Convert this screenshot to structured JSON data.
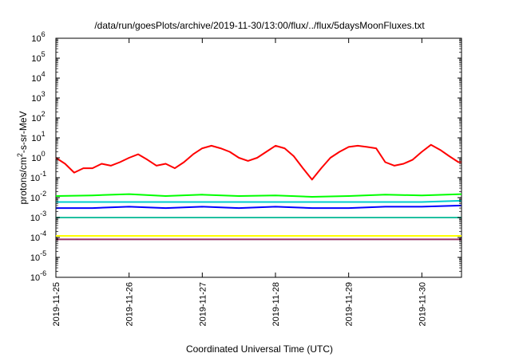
{
  "chart_data": {
    "type": "line",
    "title": "/data/run/goesPlots/archive/2019-11-30/13:00/flux/../flux/5daysMoonFluxes.txt",
    "xlabel": "Coordinated Universal Time (UTC)",
    "ylabel": "protons/cm2-s-sr-MeV",
    "ylabel_base": "protons/cm",
    "ylabel_sup": "2",
    "ylabel_rest": "-s-sr-MeV",
    "yscale": "log",
    "ylim": [
      1e-06,
      1000000.0
    ],
    "y_ticks": [
      {
        "base": "10",
        "exp": "-6",
        "value": 1e-06
      },
      {
        "base": "10",
        "exp": "-5",
        "value": 1e-05
      },
      {
        "base": "10",
        "exp": "-4",
        "value": 0.0001
      },
      {
        "base": "10",
        "exp": "-3",
        "value": 0.001
      },
      {
        "base": "10",
        "exp": "-2",
        "value": 0.01
      },
      {
        "base": "10",
        "exp": "-1",
        "value": 0.1
      },
      {
        "base": "10",
        "exp": "0",
        "value": 1
      },
      {
        "base": "10",
        "exp": "1",
        "value": 10
      },
      {
        "base": "10",
        "exp": "2",
        "value": 100
      },
      {
        "base": "10",
        "exp": "3",
        "value": 1000
      },
      {
        "base": "10",
        "exp": "4",
        "value": 10000
      },
      {
        "base": "10",
        "exp": "5",
        "value": 100000
      },
      {
        "base": "10",
        "exp": "6",
        "value": 1000000
      }
    ],
    "xlim": [
      "2019-11-25T00:00",
      "2019-11-30T13:00"
    ],
    "x_ticks": [
      "2019-11-25",
      "2019-11-26",
      "2019-11-27",
      "2019-11-28",
      "2019-11-29",
      "2019-11-30"
    ],
    "grid": false,
    "series": [
      {
        "color": "#ff0000",
        "x": [
          "2019-11-25T00:00",
          "2019-11-25T03:00",
          "2019-11-25T06:00",
          "2019-11-25T09:00",
          "2019-11-25T12:00",
          "2019-11-25T15:00",
          "2019-11-25T18:00",
          "2019-11-25T21:00",
          "2019-11-26T00:00",
          "2019-11-26T03:00",
          "2019-11-26T06:00",
          "2019-11-26T09:00",
          "2019-11-26T12:00",
          "2019-11-26T15:00",
          "2019-11-26T18:00",
          "2019-11-26T21:00",
          "2019-11-27T00:00",
          "2019-11-27T03:00",
          "2019-11-27T06:00",
          "2019-11-27T09:00",
          "2019-11-27T12:00",
          "2019-11-27T15:00",
          "2019-11-27T18:00",
          "2019-11-27T21:00",
          "2019-11-28T00:00",
          "2019-11-28T03:00",
          "2019-11-28T06:00",
          "2019-11-28T09:00",
          "2019-11-28T12:00",
          "2019-11-28T15:00",
          "2019-11-28T18:00",
          "2019-11-28T21:00",
          "2019-11-29T00:00",
          "2019-11-29T03:00",
          "2019-11-29T06:00",
          "2019-11-29T09:00",
          "2019-11-29T12:00",
          "2019-11-29T15:00",
          "2019-11-29T18:00",
          "2019-11-29T21:00",
          "2019-11-30T00:00",
          "2019-11-30T03:00",
          "2019-11-30T06:00",
          "2019-11-30T09:00",
          "2019-11-30T12:00",
          "2019-11-30T13:00"
        ],
        "values": [
          1.0,
          0.5,
          0.18,
          0.3,
          0.3,
          0.5,
          0.4,
          0.6,
          1.0,
          1.5,
          0.8,
          0.4,
          0.5,
          0.3,
          0.6,
          1.5,
          3.0,
          4.0,
          3.0,
          2.0,
          1.0,
          0.7,
          1.0,
          2.0,
          4.0,
          3.0,
          1.2,
          0.3,
          0.08,
          0.3,
          1.0,
          2.0,
          3.5,
          4.0,
          3.5,
          3.0,
          0.6,
          0.4,
          0.5,
          0.8,
          2.0,
          4.5,
          2.5,
          1.2,
          0.6,
          0.6
        ]
      },
      {
        "color": "#00ff00",
        "x": [
          "2019-11-25T00:00",
          "2019-11-25T12:00",
          "2019-11-26T00:00",
          "2019-11-26T12:00",
          "2019-11-27T00:00",
          "2019-11-27T12:00",
          "2019-11-28T00:00",
          "2019-11-28T12:00",
          "2019-11-29T00:00",
          "2019-11-29T12:00",
          "2019-11-30T00:00",
          "2019-11-30T13:00"
        ],
        "values": [
          0.012,
          0.013,
          0.015,
          0.012,
          0.014,
          0.012,
          0.013,
          0.011,
          0.012,
          0.014,
          0.013,
          0.015
        ]
      },
      {
        "color": "#00cccc",
        "x": [
          "2019-11-25T00:00",
          "2019-11-25T12:00",
          "2019-11-26T00:00",
          "2019-11-26T12:00",
          "2019-11-27T00:00",
          "2019-11-27T12:00",
          "2019-11-28T00:00",
          "2019-11-28T12:00",
          "2019-11-29T00:00",
          "2019-11-29T12:00",
          "2019-11-30T00:00",
          "2019-11-30T13:00"
        ],
        "values": [
          0.006,
          0.006,
          0.006,
          0.006,
          0.006,
          0.006,
          0.006,
          0.006,
          0.006,
          0.006,
          0.006,
          0.007
        ]
      },
      {
        "color": "#0000ff",
        "x": [
          "2019-11-25T00:00",
          "2019-11-25T12:00",
          "2019-11-26T00:00",
          "2019-11-26T12:00",
          "2019-11-27T00:00",
          "2019-11-27T12:00",
          "2019-11-28T00:00",
          "2019-11-28T12:00",
          "2019-11-29T00:00",
          "2019-11-29T12:00",
          "2019-11-30T00:00",
          "2019-11-30T13:00"
        ],
        "values": [
          0.003,
          0.003,
          0.0035,
          0.003,
          0.0035,
          0.003,
          0.0035,
          0.003,
          0.003,
          0.0035,
          0.0035,
          0.004
        ]
      },
      {
        "color": "#20c0a0",
        "x": [
          "2019-11-25T00:00",
          "2019-11-25T12:00",
          "2019-11-26T00:00",
          "2019-11-26T12:00",
          "2019-11-27T00:00",
          "2019-11-27T12:00",
          "2019-11-28T00:00",
          "2019-11-28T12:00",
          "2019-11-29T00:00",
          "2019-11-29T12:00",
          "2019-11-30T00:00",
          "2019-11-30T13:00"
        ],
        "values": [
          0.001,
          0.001,
          0.001,
          0.001,
          0.001,
          0.001,
          0.001,
          0.001,
          0.001,
          0.001,
          0.001,
          0.001
        ]
      },
      {
        "color": "#ffff00",
        "x": [
          "2019-11-25T00:00",
          "2019-11-25T12:00",
          "2019-11-26T00:00",
          "2019-11-26T12:00",
          "2019-11-27T00:00",
          "2019-11-27T12:00",
          "2019-11-28T00:00",
          "2019-11-28T12:00",
          "2019-11-29T00:00",
          "2019-11-29T12:00",
          "2019-11-30T00:00",
          "2019-11-30T13:00"
        ],
        "values": [
          0.00012,
          0.00012,
          0.00012,
          0.00012,
          0.00012,
          0.00012,
          0.00012,
          0.00012,
          0.00012,
          0.00012,
          0.00012,
          0.00012
        ]
      },
      {
        "color": "#993366",
        "x": [
          "2019-11-25T00:00",
          "2019-11-25T12:00",
          "2019-11-26T00:00",
          "2019-11-26T12:00",
          "2019-11-27T00:00",
          "2019-11-27T12:00",
          "2019-11-28T00:00",
          "2019-11-28T12:00",
          "2019-11-29T00:00",
          "2019-11-29T12:00",
          "2019-11-30T00:00",
          "2019-11-30T13:00"
        ],
        "values": [
          8e-05,
          8e-05,
          8e-05,
          8e-05,
          8e-05,
          8e-05,
          8e-05,
          8e-05,
          8e-05,
          8e-05,
          8e-05,
          8e-05
        ]
      }
    ]
  }
}
